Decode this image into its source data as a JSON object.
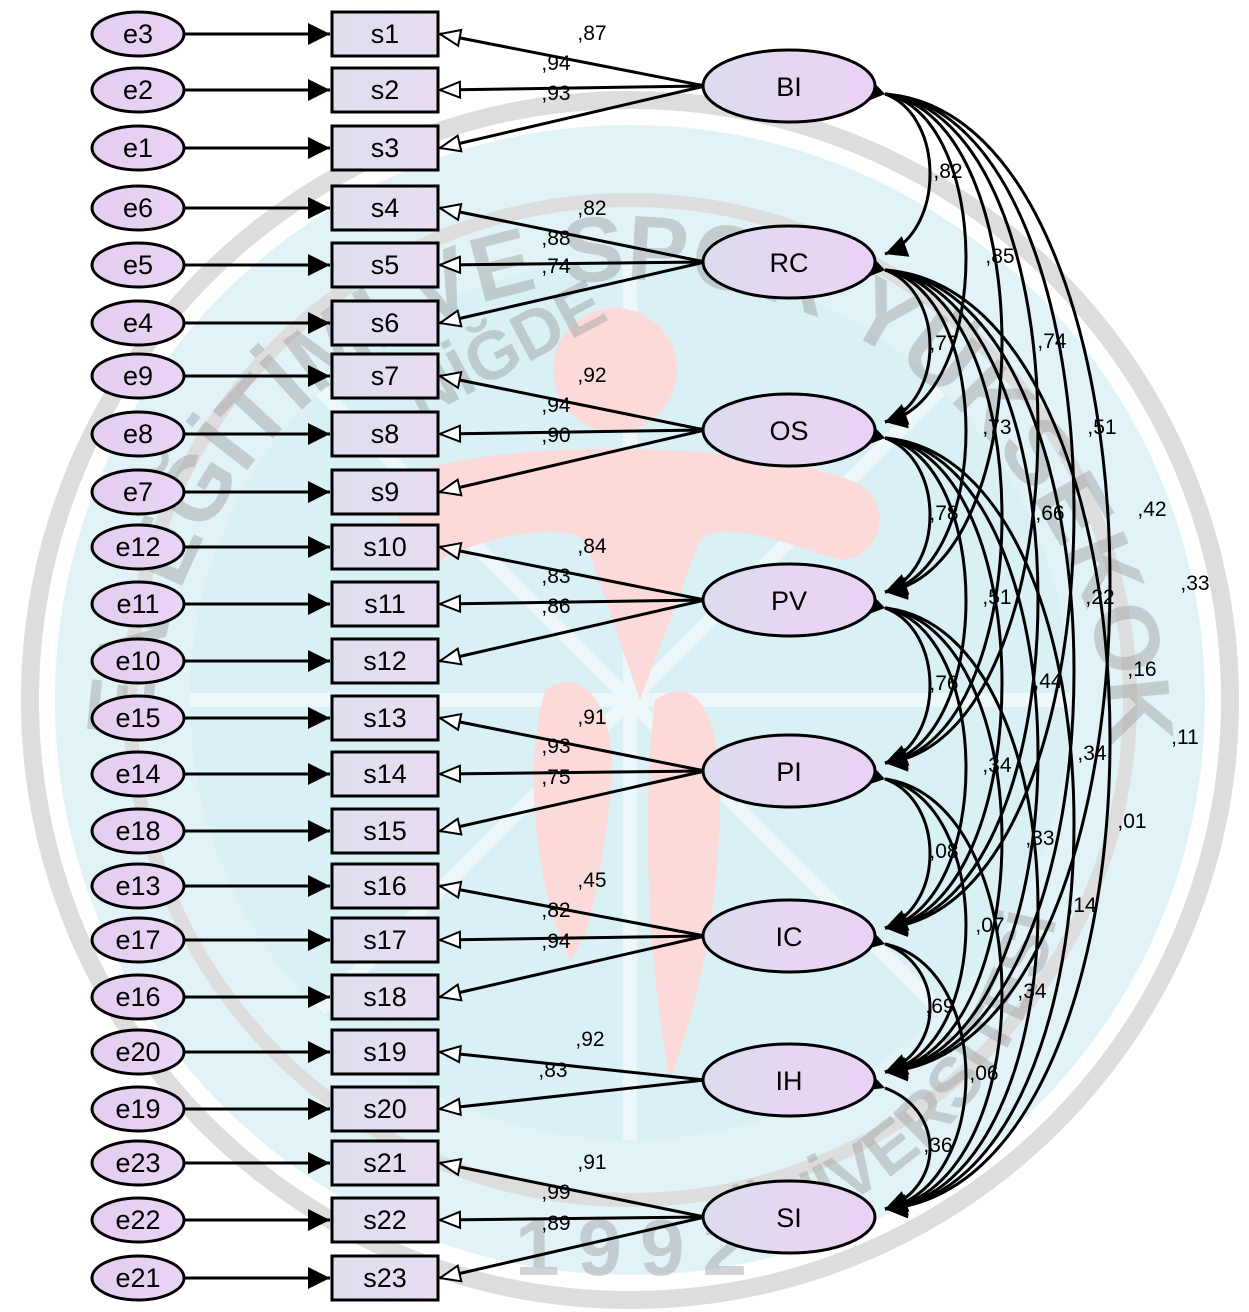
{
  "watermark": {
    "top_text": "BEDEN EĞİTİMİ VE SPOR YÜKSEKOKULU",
    "inner_text": "NİĞDE",
    "bottom_text": "ÜNİVERSİTESİ",
    "year": "1992"
  },
  "latents": [
    {
      "id": "BI",
      "label": "BI",
      "indicators": [
        "s1",
        "s2",
        "s3"
      ],
      "loadings": [
        ",87",
        ",94",
        ",93"
      ]
    },
    {
      "id": "RC",
      "label": "RC",
      "indicators": [
        "s4",
        "s5",
        "s6"
      ],
      "loadings": [
        ",82",
        ",88",
        ",74"
      ]
    },
    {
      "id": "OS",
      "label": "OS",
      "indicators": [
        "s7",
        "s8",
        "s9"
      ],
      "loadings": [
        ",92",
        ",94",
        ",90"
      ]
    },
    {
      "id": "PV",
      "label": "PV",
      "indicators": [
        "s10",
        "s11",
        "s12"
      ],
      "loadings": [
        ",84",
        ",83",
        ",86"
      ]
    },
    {
      "id": "PI",
      "label": "PI",
      "indicators": [
        "s13",
        "s14",
        "s15"
      ],
      "loadings": [
        ",91",
        ",93",
        ",75"
      ]
    },
    {
      "id": "IC",
      "label": "IC",
      "indicators": [
        "s16",
        "s17",
        "s18"
      ],
      "loadings": [
        ",45",
        ",82",
        ",94"
      ]
    },
    {
      "id": "IH",
      "label": "IH",
      "indicators": [
        "s19",
        "s20"
      ],
      "loadings": [
        ",92",
        ",83"
      ]
    },
    {
      "id": "SI",
      "label": "SI",
      "indicators": [
        "s21",
        "s22",
        "s23"
      ],
      "loadings": [
        ",91",
        ",99",
        ",89"
      ]
    }
  ],
  "observed": [
    {
      "label": "s1",
      "error": "e3"
    },
    {
      "label": "s2",
      "error": "e2"
    },
    {
      "label": "s3",
      "error": "e1"
    },
    {
      "label": "s4",
      "error": "e6"
    },
    {
      "label": "s5",
      "error": "e5"
    },
    {
      "label": "s6",
      "error": "e4"
    },
    {
      "label": "s7",
      "error": "e9"
    },
    {
      "label": "s8",
      "error": "e8"
    },
    {
      "label": "s9",
      "error": "e7"
    },
    {
      "label": "s10",
      "error": "e12"
    },
    {
      "label": "s11",
      "error": "e11"
    },
    {
      "label": "s12",
      "error": "e10"
    },
    {
      "label": "s13",
      "error": "e15"
    },
    {
      "label": "s14",
      "error": "e14"
    },
    {
      "label": "s15",
      "error": "e18"
    },
    {
      "label": "s16",
      "error": "e13"
    },
    {
      "label": "s17",
      "error": "e17"
    },
    {
      "label": "s18",
      "error": "e16"
    },
    {
      "label": "s19",
      "error": "e20"
    },
    {
      "label": "s20",
      "error": "e19"
    },
    {
      "label": "s21",
      "error": "e23"
    },
    {
      "label": "s22",
      "error": "e22"
    },
    {
      "label": "s23",
      "error": "e21"
    }
  ],
  "correlations": [
    {
      "from": "BI",
      "to": "RC",
      "value": ",82"
    },
    {
      "from": "BI",
      "to": "OS",
      "value": ",85"
    },
    {
      "from": "BI",
      "to": "PV",
      "value": ",74"
    },
    {
      "from": "BI",
      "to": "PI",
      "value": ",51"
    },
    {
      "from": "BI",
      "to": "IC",
      "value": ",42"
    },
    {
      "from": "BI",
      "to": "IH",
      "value": ",33"
    },
    {
      "from": "RC",
      "to": "OS",
      "value": ",77"
    },
    {
      "from": "RC",
      "to": "PV",
      "value": ",73"
    },
    {
      "from": "RC",
      "to": "PI",
      "value": ",66"
    },
    {
      "from": "RC",
      "to": "IC",
      "value": ",22"
    },
    {
      "from": "RC",
      "to": "IH",
      "value": ",16"
    },
    {
      "from": "RC",
      "to": "SI",
      "value": ",11"
    },
    {
      "from": "OS",
      "to": "PV",
      "value": ",78"
    },
    {
      "from": "OS",
      "to": "PI",
      "value": ",51"
    },
    {
      "from": "OS",
      "to": "IC",
      "value": ",44"
    },
    {
      "from": "OS",
      "to": "IH",
      "value": ",34"
    },
    {
      "from": "OS",
      "to": "SI",
      "value": ",01"
    },
    {
      "from": "PV",
      "to": "PI",
      "value": ",76"
    },
    {
      "from": "PV",
      "to": "IC",
      "value": ",34"
    },
    {
      "from": "PV",
      "to": "IH",
      "value": ",33"
    },
    {
      "from": "PV",
      "to": "SI",
      "value": ",14"
    },
    {
      "from": "PI",
      "to": "IC",
      "value": ",08"
    },
    {
      "from": "PI",
      "to": "IH",
      "value": ",07"
    },
    {
      "from": "PI",
      "to": "SI",
      "value": ",34"
    },
    {
      "from": "IC",
      "to": "IH",
      "value": ",69"
    },
    {
      "from": "IC",
      "to": "SI",
      "value": ",06"
    },
    {
      "from": "IH",
      "to": "SI",
      "value": ",36"
    }
  ]
}
